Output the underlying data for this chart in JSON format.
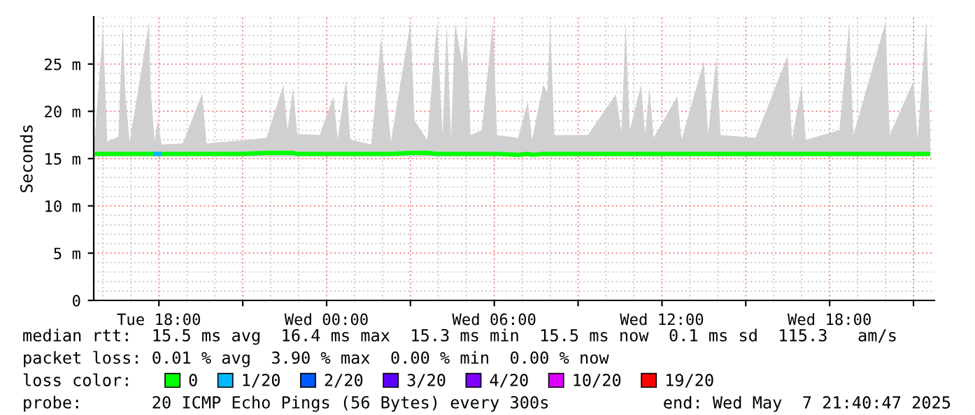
{
  "chart_data": {
    "type": "line",
    "ylabel": "Seconds",
    "series": [
      {
        "name": "0",
        "color": "#00ff00",
        "x": [
          "2025-05-06T15:42",
          "2025-05-06T16:00",
          "2025-05-06T16:09",
          "2025-05-06T16:33",
          "2025-05-06T16:42",
          "2025-05-06T16:48",
          "2025-05-06T16:57",
          "2025-05-06T17:39",
          "2025-05-06T17:42",
          "2025-05-06T17:51",
          "2025-05-06T17:57",
          "2025-05-06T18:06",
          "2025-05-06T18:51",
          "2025-05-06T19:33",
          "2025-05-06T19:42",
          "2025-05-06T20:51",
          "2025-05-06T21:51",
          "2025-05-06T22:27",
          "2025-05-06T22:36",
          "2025-05-06T22:48",
          "2025-05-06T22:57",
          "2025-05-06T23:45",
          "2025-05-07T00:15",
          "2025-05-07T00:24",
          "2025-05-07T00:42",
          "2025-05-07T00:51",
          "2025-05-07T01:36",
          "2025-05-07T01:57",
          "2025-05-07T02:09",
          "2025-05-07T02:18",
          "2025-05-07T03:00",
          "2025-05-07T03:09",
          "2025-05-07T03:36",
          "2025-05-07T03:57",
          "2025-05-07T04:09",
          "2025-05-07T04:18",
          "2025-05-07T04:27",
          "2025-05-07T04:36",
          "2025-05-07T04:51",
          "2025-05-07T05:00",
          "2025-05-07T05:09",
          "2025-05-07T05:33",
          "2025-05-07T05:57",
          "2025-05-07T06:06",
          "2025-05-07T06:51",
          "2025-05-07T07:12",
          "2025-05-07T07:21",
          "2025-05-07T07:45",
          "2025-05-07T07:54",
          "2025-05-07T08:00",
          "2025-05-07T08:09",
          "2025-05-07T09:21",
          "2025-05-07T10:21",
          "2025-05-07T10:33",
          "2025-05-07T10:42",
          "2025-05-07T10:51",
          "2025-05-07T11:15",
          "2025-05-07T11:24",
          "2025-05-07T11:33",
          "2025-05-07T11:42",
          "2025-05-07T12:33",
          "2025-05-07T12:42",
          "2025-05-07T13:30",
          "2025-05-07T13:39",
          "2025-05-07T13:57",
          "2025-05-07T14:06",
          "2025-05-07T15:21",
          "2025-05-07T16:30",
          "2025-05-07T16:39",
          "2025-05-07T17:00",
          "2025-05-07T17:09",
          "2025-05-07T18:21",
          "2025-05-07T18:42",
          "2025-05-07T18:51",
          "2025-05-07T20:00",
          "2025-05-07T20:09",
          "2025-05-07T21:00",
          "2025-05-07T21:09",
          "2025-05-07T21:27",
          "2025-05-07T21:36"
        ],
        "values": [
          15.5,
          15.5,
          15.5,
          15.5,
          15.5,
          15.5,
          15.5,
          15.5,
          15.5,
          15.5,
          15.5,
          15.5,
          15.5,
          15.5,
          15.5,
          15.5,
          15.6,
          15.6,
          15.6,
          15.6,
          15.5,
          15.5,
          15.5,
          15.5,
          15.5,
          15.5,
          15.5,
          15.5,
          15.5,
          15.5,
          15.6,
          15.6,
          15.6,
          15.5,
          15.5,
          15.5,
          15.5,
          15.5,
          15.5,
          15.5,
          15.5,
          15.5,
          15.5,
          15.5,
          15.4,
          15.5,
          15.4,
          15.5,
          15.5,
          15.5,
          15.5,
          15.5,
          15.5,
          15.5,
          15.5,
          15.5,
          15.5,
          15.5,
          15.5,
          15.5,
          15.5,
          15.5,
          15.5,
          15.5,
          15.5,
          15.5,
          15.5,
          15.5,
          15.5,
          15.5,
          15.5,
          15.5,
          15.5,
          15.5,
          15.5,
          15.5,
          15.5,
          15.5,
          15.5,
          15.5
        ],
        "lower": [
          15.2,
          15.2,
          15.2,
          15.2,
          15.2,
          15.2,
          15.2,
          15.2,
          15.2,
          15.2,
          15.2,
          15.2,
          15.2,
          15.2,
          15.2,
          15.2,
          15.2,
          15.2,
          15.2,
          15.2,
          15.2,
          15.2,
          15.2,
          15.2,
          15.2,
          15.2,
          15.2,
          15.2,
          15.2,
          15.2,
          15.2,
          15.2,
          15.2,
          15.2,
          15.2,
          15.2,
          15.2,
          15.2,
          15.2,
          15.2,
          15.2,
          15.2,
          15.2,
          15.2,
          15.2,
          15.2,
          15.2,
          15.2,
          15.2,
          15.2,
          15.2,
          15.2,
          15.2,
          15.2,
          15.2,
          15.2,
          15.2,
          15.2,
          15.2,
          15.2,
          15.2,
          15.2,
          15.2,
          15.2,
          15.2,
          15.2,
          15.2,
          15.2,
          15.2,
          15.2,
          15.2,
          15.2,
          15.2,
          15.2,
          15.2,
          15.2,
          15.2,
          15.2,
          15.2,
          15.2
        ],
        "upper": [
          17.0,
          29.0,
          16.8,
          17.3,
          29.4,
          21.8,
          16.8,
          29.4,
          22.4,
          16.8,
          19.1,
          16.5,
          16.6,
          21.9,
          16.6,
          16.9,
          17.2,
          22.8,
          18.0,
          22.5,
          17.6,
          17.5,
          21.6,
          17.0,
          23.4,
          17.0,
          16.5,
          27.9,
          21.6,
          16.8,
          29.4,
          19.0,
          17.0,
          29.4,
          17.5,
          29.4,
          17.2,
          29.4,
          25.0,
          29.4,
          17.5,
          18.0,
          29.4,
          17.5,
          17.2,
          21.0,
          17.0,
          22.8,
          22.0,
          29.4,
          17.5,
          17.5,
          21.8,
          17.8,
          29.4,
          18.0,
          22.8,
          17.5,
          22.6,
          17.2,
          21.6,
          17.0,
          25.3,
          17.6,
          25.7,
          17.5,
          17.2,
          25.9,
          17.0,
          22.8,
          17.0,
          18.0,
          29.4,
          17.5,
          29.4,
          17.5,
          23.2,
          17.0,
          29.4,
          17.5
        ]
      },
      {
        "name": "1/20",
        "color": "#00b8ff",
        "x": [
          "2025-05-06T17:48",
          "2025-05-06T18:06"
        ],
        "values": [
          15.5,
          15.5
        ]
      },
      {
        "name": "2/20",
        "color": "#0059ff"
      },
      {
        "name": "3/20",
        "color": "#5e00ff"
      },
      {
        "name": "4/20",
        "color": "#7e00ff"
      },
      {
        "name": "10/20",
        "color": "#dd00ff"
      },
      {
        "name": "19/20",
        "color": "#ff0000"
      }
    ],
    "xlim": [
      "2025-05-06T15:40",
      "2025-05-07T21:45"
    ],
    "xticks": [
      {
        "value": "2025-05-06T18:00",
        "label": "Tue 18:00"
      },
      {
        "value": "2025-05-06T21:00",
        "label": null
      },
      {
        "value": "2025-05-07T00:00",
        "label": "Wed 00:00"
      },
      {
        "value": "2025-05-07T03:00",
        "label": null
      },
      {
        "value": "2025-05-07T06:00",
        "label": "Wed 06:00"
      },
      {
        "value": "2025-05-07T09:00",
        "label": null
      },
      {
        "value": "2025-05-07T12:00",
        "label": "Wed 12:00"
      },
      {
        "value": "2025-05-07T15:00",
        "label": null
      },
      {
        "value": "2025-05-07T18:00",
        "label": "Wed 18:00"
      },
      {
        "value": "2025-05-07T21:00",
        "label": null
      }
    ],
    "ylim": [
      0,
      30
    ],
    "yticks": [
      0,
      {
        "value": 5,
        "label": "5 m"
      },
      {
        "value": 10,
        "label": "10 m"
      },
      {
        "value": 15,
        "label": "15 m"
      },
      {
        "value": 20,
        "label": "20 m"
      },
      {
        "value": 25,
        "label": "25 m"
      }
    ],
    "grid": true,
    "legend": "bottom left",
    "legend_title": "loss color:",
    "annotations": [
      "median rtt:  15.5 ms avg  16.4 ms max  15.3 ms min  15.5 ms now  0.1 ms sd  115.3   am/s",
      "packet loss: 0.01 % avg  3.90 % max  0.00 % min  0.00 % now",
      "probe:       20 ICMP Echo Pings (56 Bytes) every 300s",
      "end: Wed May  7 21:40:47 2025"
    ]
  }
}
